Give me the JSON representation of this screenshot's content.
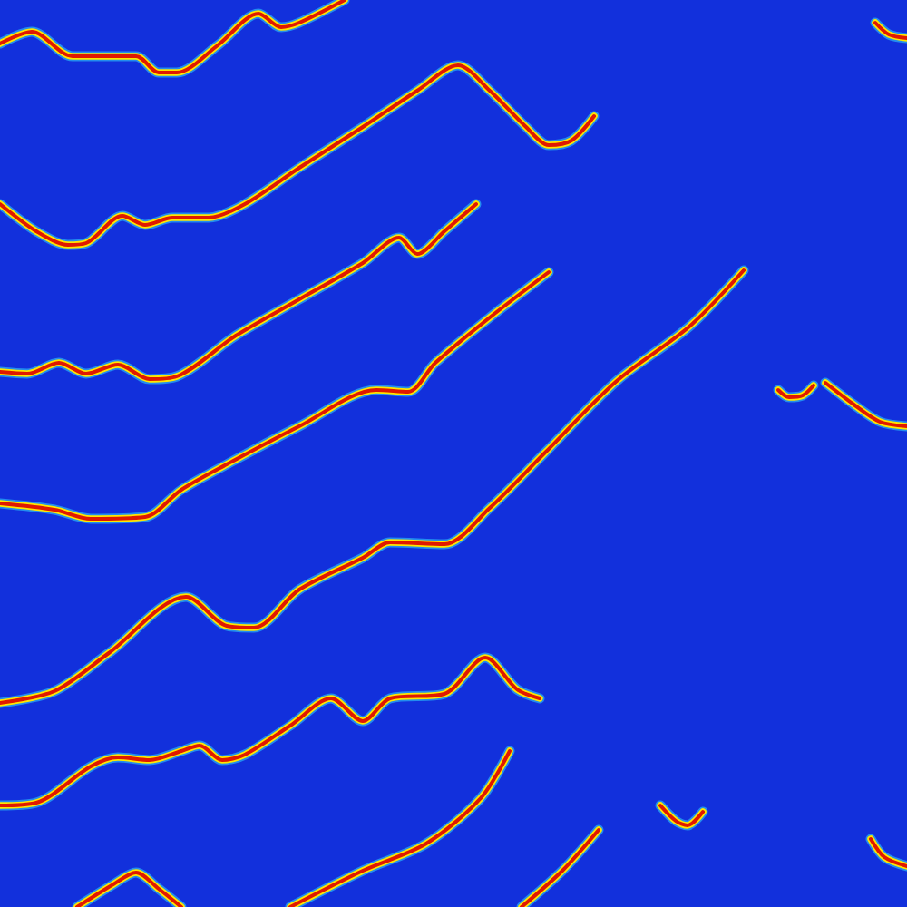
{
  "chart_data": {
    "type": "line",
    "color": "#e01800",
    "tick_labels": false,
    "grid": false,
    "xlim": [
      0,
      1000
    ],
    "ylim": [
      0,
      1000
    ],
    "series": [
      {
        "x": [
          0,
          35,
          80,
          150,
          175,
          195,
          240,
          285,
          310,
          330,
          380
        ],
        "values": [
          952,
          965,
          938,
          938,
          920,
          920,
          950,
          985,
          970,
          975,
          1000
        ]
      },
      {
        "x": [
          0,
          40,
          75,
          95,
          135,
          160,
          190,
          230,
          270,
          330,
          400,
          460,
          505,
          540,
          580,
          605,
          630,
          655
        ],
        "values": [
          775,
          745,
          730,
          732,
          762,
          752,
          760,
          760,
          775,
          815,
          860,
          900,
          928,
          900,
          860,
          840,
          845,
          872
        ]
      },
      {
        "x": [
          0,
          30,
          65,
          95,
          130,
          165,
          195,
          260,
          330,
          400,
          440,
          460,
          490,
          525
        ],
        "values": [
          590,
          588,
          600,
          588,
          598,
          582,
          585,
          630,
          670,
          710,
          738,
          720,
          745,
          775
        ]
      },
      {
        "x": [
          0,
          60,
          100,
          160,
          200,
          250,
          330,
          415,
          450,
          480,
          540,
          605
        ],
        "values": [
          445,
          438,
          428,
          430,
          460,
          488,
          530,
          570,
          568,
          600,
          650,
          700
        ]
      },
      {
        "x": [
          0,
          60,
          120,
          205,
          250,
          280,
          330,
          400,
          430,
          490,
          540,
          600,
          680,
          760,
          820
        ],
        "values": [
          225,
          238,
          280,
          342,
          310,
          308,
          350,
          385,
          402,
          400,
          440,
          500,
          580,
          640,
          702
        ]
      },
      {
        "x": [
          0,
          40,
          100,
          130,
          165,
          200,
          220,
          245,
          270,
          320,
          365,
          400,
          430,
          490,
          535,
          570,
          595
        ],
        "values": [
          112,
          115,
          155,
          165,
          162,
          172,
          178,
          162,
          168,
          200,
          230,
          205,
          230,
          235,
          275,
          240,
          230
        ]
      },
      {
        "x": [
          85,
          125,
          150,
          175,
          200
        ],
        "values": [
          0,
          25,
          38,
          20,
          0
        ]
      },
      {
        "x": [
          320,
          400,
          470,
          530,
          562
        ],
        "values": [
          0,
          40,
          70,
          120,
          172
        ]
      },
      {
        "x": [
          575,
          620,
          660
        ],
        "values": [
          0,
          40,
          85
        ]
      },
      {
        "x": [
          960,
          975,
          1000
        ],
        "values": [
          75,
          55,
          45
        ]
      },
      {
        "x": [
          858,
          870,
          885,
          897
        ],
        "values": [
          570,
          562,
          564,
          575
        ]
      },
      {
        "x": [
          910,
          940,
          970,
          1000
        ],
        "values": [
          578,
          555,
          535,
          530
        ]
      },
      {
        "x": [
          728,
          745,
          758,
          775
        ],
        "values": [
          112,
          95,
          90,
          105
        ]
      },
      {
        "x": [
          965,
          980,
          1000
        ],
        "values": [
          975,
          962,
          958
        ]
      }
    ]
  }
}
